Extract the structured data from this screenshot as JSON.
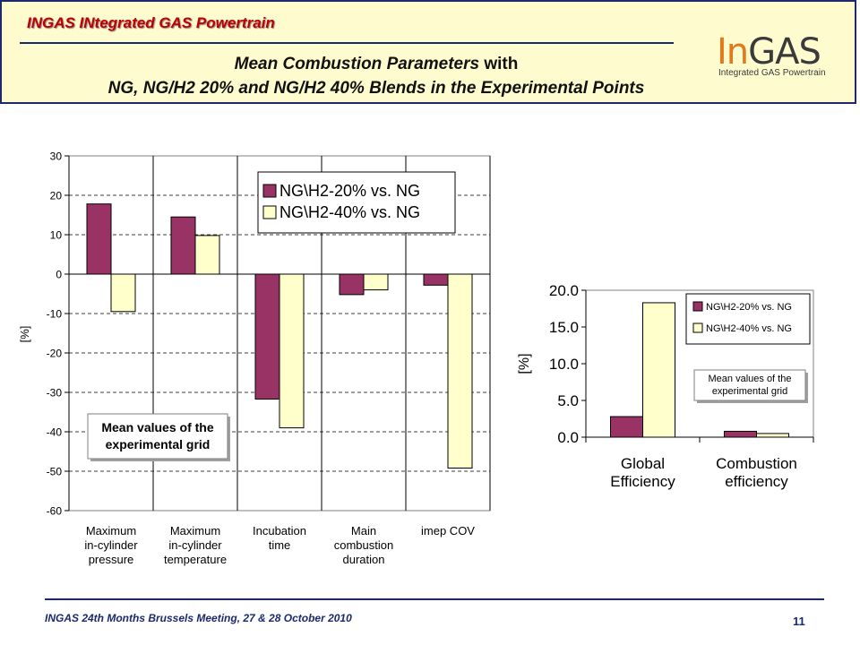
{
  "header": {
    "brand": "INGAS INtegrated GAS Powertrain",
    "title_line1_italic": "Mean Combustion Parameters",
    "title_line1_normal": "with",
    "title_line2": "NG, NG/H2 20% and NG/H2 40% Blends in the Experimental Points",
    "logo_in": "In",
    "logo_gas": "GAS",
    "logo_sub": "Integrated GAS Powertrain"
  },
  "footer": {
    "meeting": "INGAS 24th Months Brussels Meeting, 27 & 28 October 2010",
    "page": "11"
  },
  "colors": {
    "series1": "#993366",
    "series2": "#ffffcc",
    "plot_bg": "#ffffff"
  },
  "chart_data": [
    {
      "type": "bar",
      "title": "",
      "xlabel": "",
      "ylabel": "[%]",
      "ylim": [
        -60,
        30
      ],
      "yticks": [
        "30",
        "20",
        "10",
        "0",
        "-10",
        "-20",
        "-30",
        "-40",
        "-50",
        "-60"
      ],
      "categories": [
        [
          "Maximum",
          "in-cylinder",
          "pressure"
        ],
        [
          "Maximum",
          "in-cylinder",
          "temperature"
        ],
        [
          "Incubation",
          "time"
        ],
        [
          "Main",
          "combustion",
          "duration"
        ],
        [
          "imep COV"
        ]
      ],
      "series": [
        {
          "name": "NG\\H2-20% vs. NG",
          "values": [
            17.8,
            14.5,
            -31.7,
            -5.2,
            -2.8
          ]
        },
        {
          "name": "NG\\H2-40% vs. NG",
          "values": [
            -9.5,
            9.8,
            -39.0,
            -4.0,
            -49.2
          ]
        }
      ],
      "legend_position": "top-right",
      "annotation": [
        "Mean values of the",
        "experimental grid"
      ],
      "grid": true
    },
    {
      "type": "bar",
      "title": "",
      "xlabel": "",
      "ylabel": "[%]",
      "ylim": [
        0,
        20
      ],
      "yticks": [
        "20.0",
        "15.0",
        "10.0",
        "5.0",
        "0.0"
      ],
      "categories": [
        [
          "Global",
          "Efficiency"
        ],
        [
          "Combustion",
          "efficiency"
        ]
      ],
      "series": [
        {
          "name": "NG\\H2-20% vs. NG",
          "values": [
            2.8,
            0.8
          ]
        },
        {
          "name": "NG\\H2-40% vs. NG",
          "values": [
            18.3,
            0.5
          ]
        }
      ],
      "legend_position": "top-right",
      "annotation": [
        "Mean values of the",
        "experimental grid"
      ],
      "grid": false
    }
  ]
}
